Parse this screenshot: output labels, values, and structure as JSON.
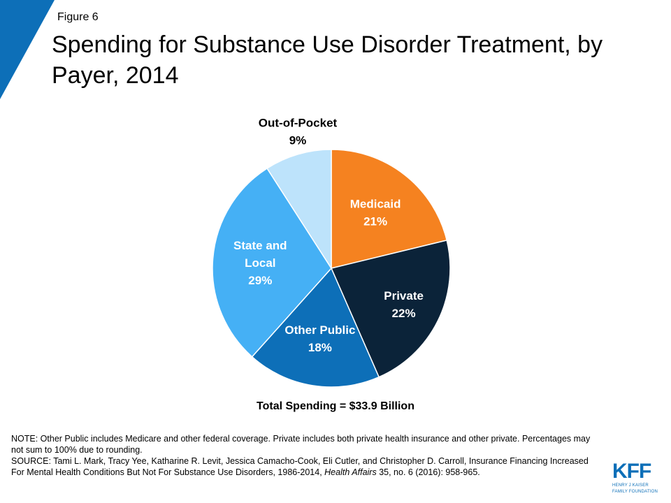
{
  "header": {
    "figure_label": "Figure 6",
    "title": "Spending for Substance Use Disorder Treatment, by Payer, 2014"
  },
  "chart_data": {
    "type": "pie",
    "title": "Spending for Substance Use Disorder Treatment, by Payer, 2014",
    "slices": [
      {
        "label": "Medicaid",
        "value": 21,
        "value_label": "21%",
        "color": "#f58220"
      },
      {
        "label": "Private",
        "value": 22,
        "value_label": "22%",
        "color": "#0b2339"
      },
      {
        "label": "Other Public",
        "value": 18,
        "value_label": "18%",
        "color": "#0d6fb8"
      },
      {
        "label": "State and Local",
        "value": 29,
        "value_label": "29%",
        "color": "#45b0f5"
      },
      {
        "label": "Out-of-Pocket",
        "value": 9,
        "value_label": "9%",
        "color": "#bde3fb"
      }
    ],
    "annotation": "Total Spending = $33.9 Billion"
  },
  "footer": {
    "note": "NOTE: Other Public includes Medicare and other federal coverage. Private includes both private health insurance and other private. Percentages may not sum to 100% due to rounding.",
    "source_prefix": "SOURCE: Tami L. Mark, Tracy Yee, Katharine R. Levit, Jessica Camacho-Cook, Eli Cutler, and Christopher D. Carroll, Insurance Financing Increased For Mental Health Conditions But Not For Substance Use Disorders, 1986-2014, ",
    "source_journal": "Health Affairs",
    "source_suffix": " 35, no. 6 (2016): 958-965."
  },
  "logo": {
    "main": "KFF",
    "line1": "HENRY J KAISER",
    "line2": "FAMILY FOUNDATION"
  },
  "colors": {
    "accent_blue": "#0d6fb8"
  }
}
